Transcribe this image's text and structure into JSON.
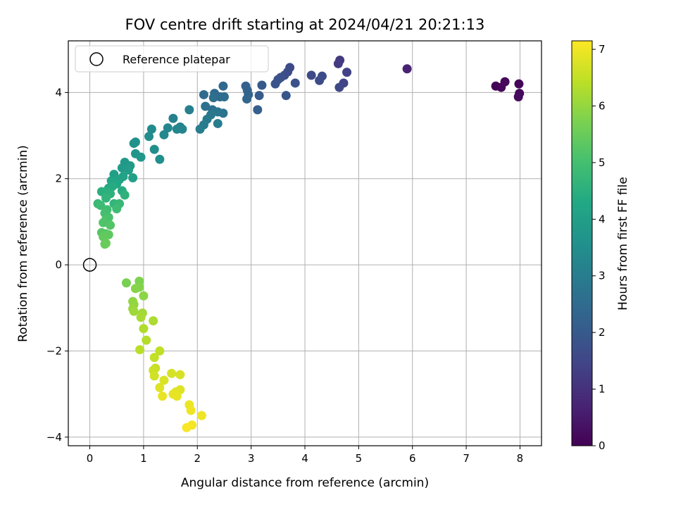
{
  "chart_data": {
    "type": "scatter",
    "title": "FOV centre drift starting at 2024/04/21 20:21:13",
    "xlabel": "Angular distance from reference (arcmin)",
    "ylabel": "Rotation from reference (arcmin)",
    "xlim": [
      -0.4,
      8.4
    ],
    "ylim": [
      -4.2,
      5.2
    ],
    "xticks": [
      0,
      1,
      2,
      3,
      4,
      5,
      6,
      7,
      8
    ],
    "yticks": [
      -4,
      -2,
      0,
      2,
      4
    ],
    "xtick_labels": [
      "0",
      "1",
      "2",
      "3",
      "4",
      "5",
      "6",
      "7",
      "8"
    ],
    "ytick_labels": [
      "−4",
      "−2",
      "0",
      "2",
      "4"
    ],
    "grid": true,
    "legend": {
      "position": "top-left",
      "entries": [
        "Reference platepar"
      ]
    },
    "reference_point": {
      "x": 0,
      "y": 0,
      "label": "Reference platepar"
    },
    "colorbar": {
      "label": "Hours from first FF file",
      "colormap": "viridis",
      "range": [
        0,
        7.15
      ],
      "ticks": [
        0,
        1,
        2,
        3,
        4,
        5,
        6,
        7
      ],
      "tick_labels": [
        "0",
        "1",
        "2",
        "3",
        "4",
        "5",
        "6",
        "7"
      ]
    },
    "points": [
      {
        "x": 7.55,
        "y": 4.15,
        "h": 0.05
      },
      {
        "x": 7.65,
        "y": 4.12,
        "h": 0.1
      },
      {
        "x": 7.72,
        "y": 4.25,
        "h": 0.15
      },
      {
        "x": 7.98,
        "y": 4.2,
        "h": 0.1
      },
      {
        "x": 7.99,
        "y": 3.98,
        "h": 0.15
      },
      {
        "x": 7.97,
        "y": 3.9,
        "h": 0.2
      },
      {
        "x": 5.9,
        "y": 4.55,
        "h": 0.7
      },
      {
        "x": 4.65,
        "y": 4.75,
        "h": 1.2
      },
      {
        "x": 4.62,
        "y": 4.67,
        "h": 1.25
      },
      {
        "x": 4.78,
        "y": 4.47,
        "h": 1.4
      },
      {
        "x": 4.72,
        "y": 4.22,
        "h": 1.45
      },
      {
        "x": 4.64,
        "y": 4.12,
        "h": 1.55
      },
      {
        "x": 4.12,
        "y": 4.4,
        "h": 1.6
      },
      {
        "x": 4.32,
        "y": 4.38,
        "h": 1.62
      },
      {
        "x": 4.27,
        "y": 4.28,
        "h": 1.65
      },
      {
        "x": 3.72,
        "y": 4.58,
        "h": 1.6
      },
      {
        "x": 3.68,
        "y": 4.48,
        "h": 1.65
      },
      {
        "x": 3.62,
        "y": 4.4,
        "h": 1.7
      },
      {
        "x": 3.55,
        "y": 4.35,
        "h": 1.75
      },
      {
        "x": 3.5,
        "y": 4.3,
        "h": 1.8
      },
      {
        "x": 3.82,
        "y": 4.22,
        "h": 1.8
      },
      {
        "x": 3.45,
        "y": 4.2,
        "h": 1.85
      },
      {
        "x": 3.65,
        "y": 3.93,
        "h": 1.9
      },
      {
        "x": 3.2,
        "y": 4.17,
        "h": 2.0
      },
      {
        "x": 3.15,
        "y": 3.93,
        "h": 2.05
      },
      {
        "x": 3.12,
        "y": 3.6,
        "h": 2.15
      },
      {
        "x": 2.9,
        "y": 4.15,
        "h": 2.2
      },
      {
        "x": 2.93,
        "y": 4.05,
        "h": 2.25
      },
      {
        "x": 2.95,
        "y": 3.95,
        "h": 2.3
      },
      {
        "x": 2.92,
        "y": 3.85,
        "h": 2.35
      },
      {
        "x": 2.48,
        "y": 4.15,
        "h": 2.4
      },
      {
        "x": 2.32,
        "y": 3.98,
        "h": 2.45
      },
      {
        "x": 2.42,
        "y": 3.9,
        "h": 2.5
      },
      {
        "x": 2.12,
        "y": 3.95,
        "h": 2.5
      },
      {
        "x": 2.5,
        "y": 3.9,
        "h": 2.55
      },
      {
        "x": 2.3,
        "y": 3.88,
        "h": 2.6
      },
      {
        "x": 2.15,
        "y": 3.68,
        "h": 2.65
      },
      {
        "x": 2.28,
        "y": 3.6,
        "h": 2.7
      },
      {
        "x": 2.48,
        "y": 3.52,
        "h": 2.75
      },
      {
        "x": 2.38,
        "y": 3.55,
        "h": 2.8
      },
      {
        "x": 2.25,
        "y": 3.48,
        "h": 2.85
      },
      {
        "x": 2.18,
        "y": 3.38,
        "h": 2.9
      },
      {
        "x": 2.12,
        "y": 3.25,
        "h": 2.95
      },
      {
        "x": 2.05,
        "y": 3.15,
        "h": 3.0
      },
      {
        "x": 2.38,
        "y": 3.28,
        "h": 3.0
      },
      {
        "x": 1.85,
        "y": 3.6,
        "h": 3.05
      },
      {
        "x": 1.55,
        "y": 3.4,
        "h": 3.1
      },
      {
        "x": 1.68,
        "y": 3.2,
        "h": 3.15
      },
      {
        "x": 1.72,
        "y": 3.15,
        "h": 3.2
      },
      {
        "x": 1.62,
        "y": 3.15,
        "h": 3.25
      },
      {
        "x": 1.45,
        "y": 3.18,
        "h": 3.3
      },
      {
        "x": 1.38,
        "y": 3.02,
        "h": 3.35
      },
      {
        "x": 1.15,
        "y": 3.15,
        "h": 3.4
      },
      {
        "x": 1.1,
        "y": 2.98,
        "h": 3.45
      },
      {
        "x": 1.2,
        "y": 2.68,
        "h": 3.5
      },
      {
        "x": 1.3,
        "y": 2.45,
        "h": 3.55
      },
      {
        "x": 0.85,
        "y": 2.85,
        "h": 3.6
      },
      {
        "x": 0.82,
        "y": 2.82,
        "h": 3.65
      },
      {
        "x": 0.85,
        "y": 2.58,
        "h": 3.7
      },
      {
        "x": 0.95,
        "y": 2.5,
        "h": 3.75
      },
      {
        "x": 0.65,
        "y": 2.38,
        "h": 3.8
      },
      {
        "x": 0.75,
        "y": 2.3,
        "h": 3.85
      },
      {
        "x": 0.6,
        "y": 2.25,
        "h": 3.9
      },
      {
        "x": 0.72,
        "y": 2.2,
        "h": 3.95
      },
      {
        "x": 0.45,
        "y": 2.1,
        "h": 4.0
      },
      {
        "x": 0.8,
        "y": 2.02,
        "h": 4.05
      },
      {
        "x": 0.62,
        "y": 2.05,
        "h": 4.1
      },
      {
        "x": 0.55,
        "y": 1.98,
        "h": 4.15
      },
      {
        "x": 0.4,
        "y": 1.95,
        "h": 4.2
      },
      {
        "x": 0.5,
        "y": 1.88,
        "h": 4.25
      },
      {
        "x": 0.35,
        "y": 1.78,
        "h": 4.3
      },
      {
        "x": 0.42,
        "y": 1.82,
        "h": 4.35
      },
      {
        "x": 0.6,
        "y": 1.72,
        "h": 4.4
      },
      {
        "x": 0.3,
        "y": 1.7,
        "h": 4.45
      },
      {
        "x": 0.22,
        "y": 1.7,
        "h": 4.5
      },
      {
        "x": 0.38,
        "y": 1.65,
        "h": 4.55
      },
      {
        "x": 0.65,
        "y": 1.62,
        "h": 4.6
      },
      {
        "x": 0.3,
        "y": 1.55,
        "h": 4.65
      },
      {
        "x": 0.45,
        "y": 1.42,
        "h": 4.7
      },
      {
        "x": 0.55,
        "y": 1.42,
        "h": 4.75
      },
      {
        "x": 0.15,
        "y": 1.42,
        "h": 4.8
      },
      {
        "x": 0.2,
        "y": 1.38,
        "h": 4.85
      },
      {
        "x": 0.5,
        "y": 1.3,
        "h": 4.9
      },
      {
        "x": 0.32,
        "y": 1.28,
        "h": 4.95
      },
      {
        "x": 0.28,
        "y": 1.2,
        "h": 5.0
      },
      {
        "x": 0.35,
        "y": 1.1,
        "h": 5.05
      },
      {
        "x": 0.3,
        "y": 1.05,
        "h": 5.1
      },
      {
        "x": 0.25,
        "y": 0.98,
        "h": 5.15
      },
      {
        "x": 0.38,
        "y": 0.92,
        "h": 5.2
      },
      {
        "x": 0.22,
        "y": 0.75,
        "h": 5.25
      },
      {
        "x": 0.3,
        "y": 0.72,
        "h": 5.3
      },
      {
        "x": 0.35,
        "y": 0.7,
        "h": 5.35
      },
      {
        "x": 0.25,
        "y": 0.65,
        "h": 5.4
      },
      {
        "x": 0.3,
        "y": 0.5,
        "h": 5.45
      },
      {
        "x": 0.28,
        "y": 0.48,
        "h": 5.5
      },
      {
        "x": 0.68,
        "y": -0.42,
        "h": 5.7
      },
      {
        "x": 0.92,
        "y": -0.38,
        "h": 5.75
      },
      {
        "x": 0.92,
        "y": -0.52,
        "h": 5.8
      },
      {
        "x": 0.85,
        "y": -0.55,
        "h": 5.85
      },
      {
        "x": 1.0,
        "y": -0.72,
        "h": 5.9
      },
      {
        "x": 0.8,
        "y": -0.85,
        "h": 5.95
      },
      {
        "x": 0.82,
        "y": -0.92,
        "h": 6.0
      },
      {
        "x": 0.8,
        "y": -1.02,
        "h": 6.05
      },
      {
        "x": 0.82,
        "y": -1.08,
        "h": 6.1
      },
      {
        "x": 0.98,
        "y": -1.12,
        "h": 6.15
      },
      {
        "x": 0.95,
        "y": -1.22,
        "h": 6.2
      },
      {
        "x": 1.18,
        "y": -1.3,
        "h": 6.25
      },
      {
        "x": 1.0,
        "y": -1.48,
        "h": 6.3
      },
      {
        "x": 1.05,
        "y": -1.75,
        "h": 6.35
      },
      {
        "x": 0.93,
        "y": -1.97,
        "h": 6.4
      },
      {
        "x": 1.3,
        "y": -2.0,
        "h": 6.45
      },
      {
        "x": 1.2,
        "y": -2.15,
        "h": 6.5
      },
      {
        "x": 1.22,
        "y": -2.4,
        "h": 6.55
      },
      {
        "x": 1.18,
        "y": -2.45,
        "h": 6.6
      },
      {
        "x": 1.2,
        "y": -2.58,
        "h": 6.65
      },
      {
        "x": 1.52,
        "y": -2.52,
        "h": 6.7
      },
      {
        "x": 1.68,
        "y": -2.55,
        "h": 6.72
      },
      {
        "x": 1.38,
        "y": -2.68,
        "h": 6.75
      },
      {
        "x": 1.3,
        "y": -2.85,
        "h": 6.8
      },
      {
        "x": 1.68,
        "y": -2.9,
        "h": 6.82
      },
      {
        "x": 1.6,
        "y": -2.95,
        "h": 6.85
      },
      {
        "x": 1.55,
        "y": -3.0,
        "h": 6.88
      },
      {
        "x": 1.62,
        "y": -3.05,
        "h": 6.9
      },
      {
        "x": 1.35,
        "y": -3.05,
        "h": 6.92
      },
      {
        "x": 1.85,
        "y": -3.25,
        "h": 6.95
      },
      {
        "x": 1.88,
        "y": -3.38,
        "h": 6.98
      },
      {
        "x": 2.08,
        "y": -3.5,
        "h": 7.0
      },
      {
        "x": 1.9,
        "y": -3.72,
        "h": 7.05
      },
      {
        "x": 1.8,
        "y": -3.78,
        "h": 7.1
      }
    ]
  }
}
